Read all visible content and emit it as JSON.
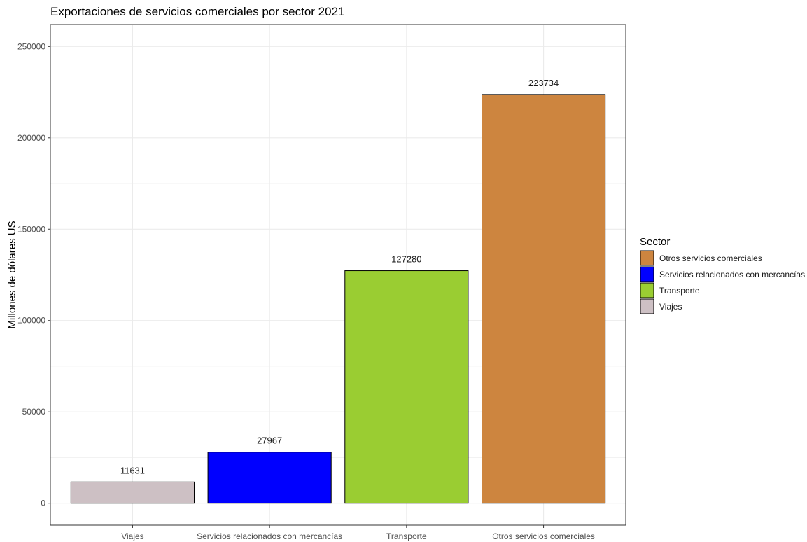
{
  "chart_data": {
    "type": "bar",
    "title": "Exportaciones de servicios comerciales por sector 2021",
    "xlabel": "",
    "ylabel": "Millones de dólares US",
    "categories": [
      "Viajes",
      "Servicios relacionados con mercancías",
      "Transporte",
      "Otros servicios comerciales"
    ],
    "values": [
      11631,
      27967,
      127280,
      223734
    ],
    "data_labels": [
      "11631",
      "27967",
      "127280",
      "223734"
    ],
    "colors": [
      "#CDC0C4",
      "#0000FF",
      "#9ACD32",
      "#CD853F"
    ],
    "ylim": [
      -12000,
      262000
    ],
    "yticks": [
      0,
      50000,
      100000,
      150000,
      200000,
      250000
    ],
    "ytick_labels": [
      "0",
      "50000",
      "100000",
      "150000",
      "200000",
      "250000"
    ],
    "grid": true,
    "legend": {
      "title": "Sector",
      "position": "right",
      "entries": [
        {
          "label": "Otros servicios comerciales",
          "color": "#CD853F"
        },
        {
          "label": "Servicios relacionados con mercancías",
          "color": "#0000FF"
        },
        {
          "label": "Transporte",
          "color": "#9ACD32"
        },
        {
          "label": "Viajes",
          "color": "#CDC0C4"
        }
      ]
    }
  }
}
